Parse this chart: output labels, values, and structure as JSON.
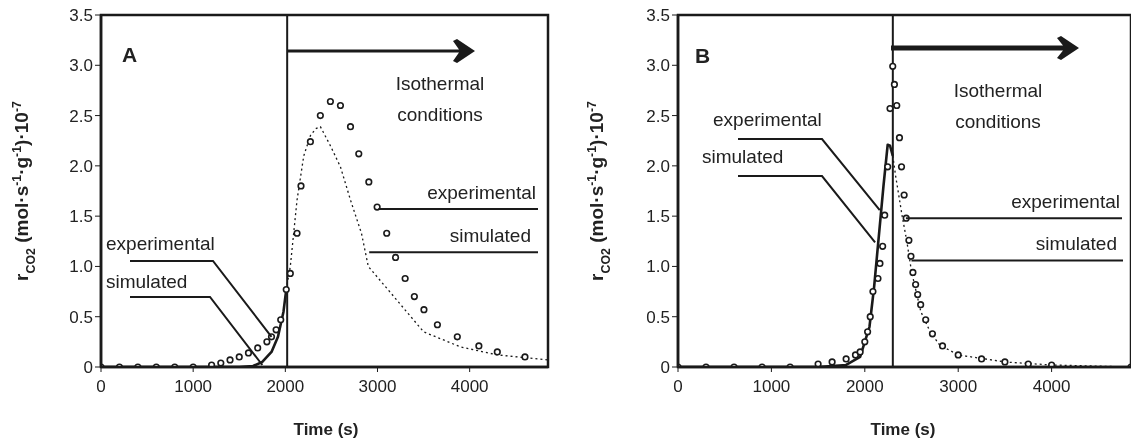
{
  "chart_data": [
    {
      "type": "scatter",
      "xlabel": "Time (s)",
      "ylabel": "r$_{CO2}$ (mol·s$^{-1}$·g$^{-1}$)·10$^{-7}$",
      "xlim": [
        0,
        4850
      ],
      "xticks": [
        0,
        1000,
        2000,
        3000,
        4000
      ],
      "ylim": [
        0,
        3.5
      ],
      "yticks": [
        0,
        0.5,
        {
          "value": 1,
          "label": "1.0"
        },
        1.5,
        {
          "value": 2,
          "label": "2.0"
        },
        2.5,
        {
          "value": 3,
          "label": "3.0"
        },
        3.5
      ],
      "grid": false,
      "legend": false,
      "ref_lines": [
        {
          "axis": "x",
          "value": 2020,
          "color": "#1a1a1a"
        }
      ],
      "annotations": [
        "A",
        "Isothermal conditions",
        {
          "text": "experimental",
          "x": 1850,
          "y": 0.3
        },
        {
          "text": "simulated",
          "x": 1750,
          "y": 0.02
        },
        {
          "text": "experimental",
          "x": 3010,
          "y": 1.57
        },
        {
          "text": "simulated",
          "x": 2910,
          "y": 1.14
        }
      ],
      "series": [
        {
          "type": "scatter",
          "marker": "circle",
          "color": "#1a1a1a",
          "x": [
            0,
            200,
            400,
            600,
            800,
            1000,
            1200,
            1300,
            1400,
            1500,
            1600,
            1700,
            1800,
            1850,
            1900,
            1950,
            2010,
            2054,
            2127,
            2170,
            2272,
            2380,
            2489,
            2598,
            2707,
            2797,
            2906,
            2996,
            3100,
            3196,
            3300,
            3400,
            3504,
            3650,
            3866,
            4100,
            4300,
            4600
          ],
          "values": [
            0,
            0,
            0,
            0,
            0,
            0,
            0.02,
            0.04,
            0.07,
            0.1,
            0.14,
            0.19,
            0.25,
            0.3,
            0.37,
            0.47,
            0.77,
            0.93,
            1.33,
            1.8,
            2.24,
            2.5,
            2.64,
            2.6,
            2.39,
            2.12,
            1.84,
            1.59,
            1.33,
            1.09,
            0.88,
            0.7,
            0.57,
            0.42,
            0.3,
            0.21,
            0.15,
            0.1
          ]
        },
        {
          "type": "line",
          "marker": "none",
          "line_style": "solid",
          "color": "#1a1a1a",
          "x": [
            0,
            1000,
            1500,
            1650,
            1750,
            1850,
            1920,
            1980,
            2010
          ],
          "values": [
            0,
            0,
            0,
            0.01,
            0.05,
            0.15,
            0.3,
            0.55,
            0.77
          ]
        },
        {
          "type": "line",
          "marker": "none",
          "line_style": "dotted",
          "color": "#1a1a1a",
          "x": [
            2010,
            2054,
            2127,
            2200,
            2272,
            2330,
            2380,
            2489,
            2598,
            2707,
            2826,
            2900,
            3150,
            3500,
            3900,
            4300,
            4850
          ],
          "values": [
            0.77,
            1.0,
            1.66,
            2.1,
            2.3,
            2.37,
            2.39,
            2.2,
            1.99,
            1.66,
            1.33,
            1.0,
            0.73,
            0.35,
            0.2,
            0.12,
            0.07
          ]
        }
      ]
    },
    {
      "type": "scatter",
      "xlabel": "Time (s)",
      "ylabel": "r$_{CO2}$ (mol·s$^{-1}$·g$^{-1}$)·10$^{-7}$",
      "xlim": [
        0,
        4850
      ],
      "xticks": [
        0,
        1000,
        2000,
        3000,
        4000
      ],
      "ylim": [
        0,
        3.5
      ],
      "yticks": [
        0,
        0.5,
        {
          "value": 1,
          "label": "1.0"
        },
        1.5,
        {
          "value": 2,
          "label": "2.0"
        },
        2.5,
        {
          "value": 3,
          "label": "3.0"
        },
        3.5
      ],
      "grid": false,
      "legend": false,
      "ref_lines": [
        {
          "axis": "x",
          "value": 2300,
          "color": "#1a1a1a"
        }
      ],
      "annotations": [
        "B",
        "Isothermal conditions",
        {
          "text": "experimental",
          "x": 2160,
          "y": 1.56
        },
        {
          "text": "simulated",
          "x": 2110,
          "y": 1.24
        },
        {
          "text": "experimental",
          "x": 2440,
          "y": 1.48
        },
        {
          "text": "simulated",
          "x": 2500,
          "y": 1.06
        }
      ],
      "series": [
        {
          "type": "scatter",
          "marker": "circle",
          "color": "#1a1a1a",
          "x": [
            0,
            300,
            600,
            900,
            1200,
            1500,
            1650,
            1800,
            1900,
            1950,
            2000,
            2030,
            2058,
            2087,
            2141,
            2162,
            2191,
            2213,
            2245,
            2270,
            2299,
            2317,
            2342,
            2371,
            2393,
            2421,
            2443,
            2472,
            2494,
            2515,
            2544,
            2566,
            2598,
            2652,
            2724,
            2832,
            3000,
            3250,
            3500,
            3750,
            4000,
            4850
          ],
          "values": [
            0,
            0,
            0,
            0,
            0,
            0.03,
            0.05,
            0.08,
            0.12,
            0.15,
            0.25,
            0.35,
            0.5,
            0.75,
            0.88,
            1.03,
            1.2,
            1.51,
            1.99,
            2.57,
            2.99,
            2.81,
            2.6,
            2.28,
            1.99,
            1.71,
            1.48,
            1.26,
            1.1,
            0.94,
            0.82,
            0.72,
            0.62,
            0.47,
            0.33,
            0.21,
            0.12,
            0.08,
            0.05,
            0.03,
            0.02,
            0
          ]
        },
        {
          "type": "line",
          "marker": "none",
          "line_style": "solid",
          "color": "#1a1a1a",
          "x": [
            0,
            1500,
            1800,
            1950,
            2050,
            2100,
            2150,
            2200,
            2245,
            2270,
            2300
          ],
          "values": [
            0,
            0,
            0.02,
            0.1,
            0.4,
            0.8,
            1.3,
            1.8,
            2.21,
            2.2,
            2.1
          ]
        },
        {
          "type": "line",
          "marker": "none",
          "line_style": "dotted",
          "color": "#1a1a1a",
          "x": [
            2300,
            2330,
            2400,
            2450,
            2500,
            2600,
            2700,
            2800,
            3000,
            3500,
            4000,
            4850
          ],
          "values": [
            2.1,
            1.9,
            1.5,
            1.25,
            0.95,
            0.55,
            0.35,
            0.22,
            0.12,
            0.05,
            0.02,
            0
          ]
        }
      ]
    }
  ]
}
